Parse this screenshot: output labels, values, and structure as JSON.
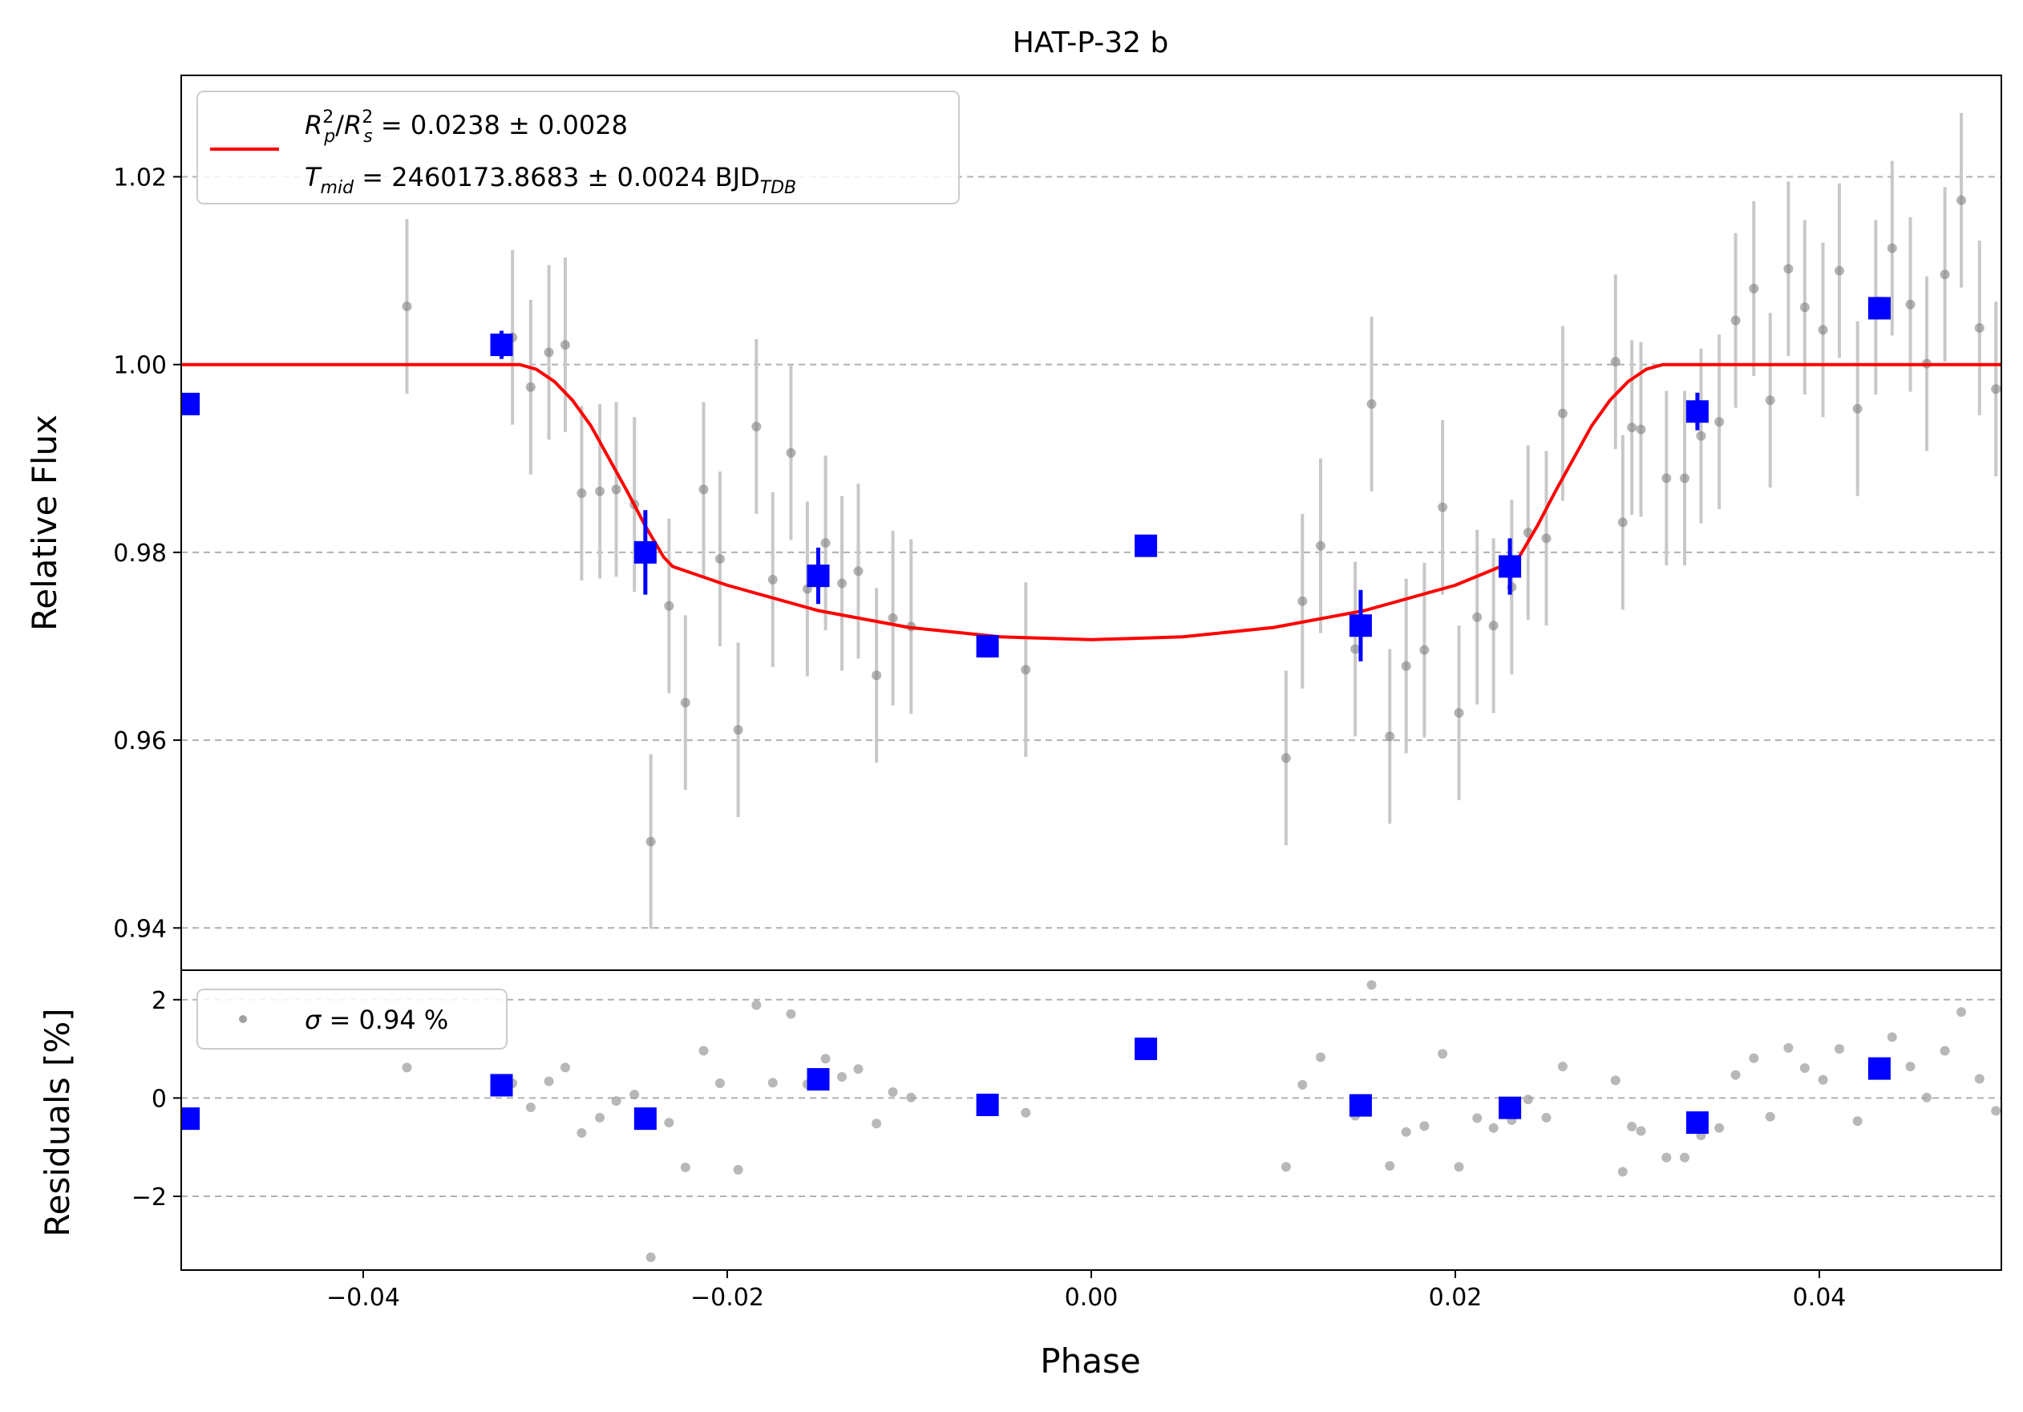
{
  "chart_data": [
    {
      "type": "scatter",
      "title": "HAT-P-32 b",
      "xlabel": "",
      "ylabel": "Relative Flux",
      "xlim": [
        -0.05,
        0.05
      ],
      "ylim": [
        0.9355,
        1.0308
      ],
      "xticks": [
        -0.04,
        -0.02,
        0.0,
        0.02,
        0.04
      ],
      "yticks": [
        0.94,
        0.96,
        0.98,
        1.0,
        1.02
      ],
      "ytick_labels": [
        "0.94",
        "0.96",
        "0.98",
        "1.00",
        "1.02"
      ],
      "grid": "horizontal dashed",
      "legend_position": "top-left",
      "legend": {
        "line1": {
          "lhs_sup": "2",
          "lhs_p": "p",
          "lhs_s": "s",
          "rhs": " = 0.0238 ± 0.0028"
        },
        "line2": {
          "lhs_sub": "mid",
          "rhs": " = 2460173.8683 ± 0.0024 BJD",
          "unit_sub": "TDB"
        }
      },
      "colors": {
        "data": "#808080",
        "errorbar": "#c8c8c8",
        "binned": "#0000ff",
        "model": "#ff0000",
        "grid": "#b0b0b0"
      },
      "series": [
        {
          "label": "data",
          "points": [
            [
              -0.0376,
              1.0062,
              0.0093
            ],
            [
              -0.0318,
              1.0029,
              0.0093
            ],
            [
              -0.0308,
              0.9976,
              0.0093
            ],
            [
              -0.0298,
              1.0013,
              0.0093
            ],
            [
              -0.0289,
              1.0021,
              0.0093
            ],
            [
              -0.028,
              0.9863,
              0.0093
            ],
            [
              -0.027,
              0.9865,
              0.0093
            ],
            [
              -0.0261,
              0.9867,
              0.0093
            ],
            [
              -0.0251,
              0.9851,
              0.0093
            ],
            [
              -0.0242,
              0.9492,
              0.0093
            ],
            [
              -0.0232,
              0.9743,
              0.0093
            ],
            [
              -0.0223,
              0.964,
              0.0093
            ],
            [
              -0.0213,
              0.9867,
              0.0093
            ],
            [
              -0.0204,
              0.9793,
              0.0093
            ],
            [
              -0.0194,
              0.9611,
              0.0093
            ],
            [
              -0.0184,
              0.9934,
              0.0093
            ],
            [
              -0.0175,
              0.9771,
              0.0093
            ],
            [
              -0.0165,
              0.9906,
              0.0093
            ],
            [
              -0.0156,
              0.9761,
              0.0093
            ],
            [
              -0.0146,
              0.981,
              0.0093
            ],
            [
              -0.0137,
              0.9767,
              0.0093
            ],
            [
              -0.0128,
              0.978,
              0.0093
            ],
            [
              -0.0118,
              0.9669,
              0.0093
            ],
            [
              -0.0109,
              0.973,
              0.0093
            ],
            [
              -0.0099,
              0.9721,
              0.0093
            ],
            [
              -0.0036,
              0.9675,
              0.0093
            ],
            [
              0.0107,
              0.9581,
              0.0093
            ],
            [
              0.0116,
              0.9748,
              0.0093
            ],
            [
              0.0126,
              0.9807,
              0.0093
            ],
            [
              0.0145,
              0.9697,
              0.0093
            ],
            [
              0.0154,
              0.9958,
              0.0093
            ],
            [
              0.0164,
              0.9604,
              0.0093
            ],
            [
              0.0173,
              0.9679,
              0.0093
            ],
            [
              0.0183,
              0.9696,
              0.0093
            ],
            [
              0.0193,
              0.9848,
              0.0093
            ],
            [
              0.0202,
              0.9629,
              0.0093
            ],
            [
              0.0212,
              0.9731,
              0.0093
            ],
            [
              0.0221,
              0.9722,
              0.0093
            ],
            [
              0.0231,
              0.9763,
              0.0093
            ],
            [
              0.024,
              0.9821,
              0.0093
            ],
            [
              0.025,
              0.9815,
              0.0093
            ],
            [
              0.0259,
              0.9948,
              0.0093
            ],
            [
              0.0288,
              1.0003,
              0.0093
            ],
            [
              0.0292,
              0.9832,
              0.0093
            ],
            [
              0.0297,
              0.9933,
              0.0093
            ],
            [
              0.0302,
              0.9931,
              0.0093
            ],
            [
              0.0316,
              0.9879,
              0.0093
            ],
            [
              0.0326,
              0.9879,
              0.0093
            ],
            [
              0.0335,
              0.9924,
              0.0093
            ],
            [
              0.0345,
              0.9939,
              0.0093
            ],
            [
              0.0354,
              1.0047,
              0.0093
            ],
            [
              0.0364,
              1.0081,
              0.0093
            ],
            [
              0.0373,
              0.9962,
              0.0093
            ],
            [
              0.0383,
              1.0102,
              0.0093
            ],
            [
              0.0392,
              1.0061,
              0.0093
            ],
            [
              0.0402,
              1.0037,
              0.0093
            ],
            [
              0.0411,
              1.01,
              0.0093
            ],
            [
              0.0421,
              0.9953,
              0.0093
            ],
            [
              0.0431,
              1.0061,
              0.0093
            ],
            [
              0.044,
              1.0124,
              0.0093
            ],
            [
              0.045,
              1.0064,
              0.0093
            ],
            [
              0.0459,
              1.0001,
              0.0093
            ],
            [
              0.0469,
              1.0096,
              0.0093
            ],
            [
              0.0478,
              1.0175,
              0.0093
            ],
            [
              0.0488,
              1.0039,
              0.0093
            ],
            [
              0.0497,
              0.9974,
              0.0093
            ]
          ]
        },
        {
          "label": "binned",
          "points": [
            [
              -0.0496,
              0.9958,
              0.001
            ],
            [
              -0.0324,
              1.0021,
              0.0015
            ],
            [
              -0.0245,
              0.98,
              0.0045
            ],
            [
              -0.015,
              0.9775,
              0.003
            ],
            [
              -0.0057,
              0.97,
              0.0012
            ],
            [
              0.003,
              0.9807,
              0.001
            ],
            [
              0.0148,
              0.9722,
              0.0038
            ],
            [
              0.023,
              0.9785,
              0.003
            ],
            [
              0.0333,
              0.995,
              0.002
            ],
            [
              0.0433,
              1.006,
              0.0012
            ]
          ]
        },
        {
          "label": "model",
          "x": [
            -0.05,
            -0.0314,
            -0.0305,
            -0.0295,
            -0.0285,
            -0.0275,
            -0.0265,
            -0.0255,
            -0.0245,
            -0.0235,
            -0.023,
            -0.02,
            -0.015,
            -0.01,
            -0.005,
            0.0,
            0.005,
            0.01,
            0.015,
            0.02,
            0.0225,
            0.0235,
            0.0245,
            0.0255,
            0.0265,
            0.0275,
            0.0285,
            0.0295,
            0.0305,
            0.0314,
            0.05
          ],
          "y": [
            1.0,
            1.0,
            0.9995,
            0.9982,
            0.9962,
            0.9935,
            0.99,
            0.9865,
            0.9828,
            0.9795,
            0.9785,
            0.9765,
            0.9738,
            0.972,
            0.971,
            0.9707,
            0.971,
            0.972,
            0.9738,
            0.9765,
            0.9785,
            0.9795,
            0.9828,
            0.9865,
            0.99,
            0.9935,
            0.9962,
            0.9982,
            0.9995,
            1.0,
            1.0
          ]
        }
      ]
    },
    {
      "type": "scatter",
      "title": "",
      "xlabel": "Phase",
      "ylabel": "Residuals [%]",
      "xlim": [
        -0.05,
        0.05
      ],
      "ylim": [
        -3.5,
        2.6
      ],
      "xticks": [
        -0.04,
        -0.02,
        0.0,
        0.02,
        0.04
      ],
      "xtick_labels": [
        "−0.04",
        "−0.02",
        "0.00",
        "0.02",
        "0.04"
      ],
      "yticks": [
        -2,
        0,
        2
      ],
      "ytick_labels": [
        "−2",
        "0",
        "2"
      ],
      "grid": "horizontal dashed",
      "legend_position": "top-left",
      "legend": {
        "sigma_symbol": "σ",
        "rhs": " = 0.94 %"
      },
      "colors": {
        "data": "#a0a0a0",
        "binned": "#0000ff",
        "grid": "#b0b0b0"
      },
      "series": [
        {
          "label": "data",
          "points": [
            [
              -0.0376,
              0.62
            ],
            [
              -0.0318,
              0.3
            ],
            [
              -0.0308,
              -0.19
            ],
            [
              -0.0298,
              0.34
            ],
            [
              -0.0289,
              0.62
            ],
            [
              -0.028,
              -0.71
            ],
            [
              -0.027,
              -0.4
            ],
            [
              -0.0261,
              -0.06
            ],
            [
              -0.0251,
              0.07
            ],
            [
              -0.0242,
              -3.24
            ],
            [
              -0.0232,
              -0.5
            ],
            [
              -0.0223,
              -1.41
            ],
            [
              -0.0213,
              0.96
            ],
            [
              -0.0204,
              0.3
            ],
            [
              -0.0194,
              -1.46
            ],
            [
              -0.0184,
              1.89
            ],
            [
              -0.0175,
              0.31
            ],
            [
              -0.0165,
              1.71
            ],
            [
              -0.0156,
              0.28
            ],
            [
              -0.0146,
              0.8
            ],
            [
              -0.0137,
              0.43
            ],
            [
              -0.0128,
              0.59
            ],
            [
              -0.0118,
              -0.52
            ],
            [
              -0.0109,
              0.12
            ],
            [
              -0.0099,
              0.01
            ],
            [
              -0.0036,
              -0.3
            ],
            [
              0.0107,
              -1.4
            ],
            [
              0.0116,
              0.27
            ],
            [
              0.0126,
              0.83
            ],
            [
              0.0145,
              -0.36
            ],
            [
              0.0154,
              2.3
            ],
            [
              0.0164,
              -1.38
            ],
            [
              0.0173,
              -0.69
            ],
            [
              0.0183,
              -0.57
            ],
            [
              0.0193,
              0.9
            ],
            [
              0.0202,
              -1.4
            ],
            [
              0.0212,
              -0.41
            ],
            [
              0.0221,
              -0.61
            ],
            [
              0.0231,
              -0.45
            ],
            [
              0.024,
              -0.03
            ],
            [
              0.025,
              -0.4
            ],
            [
              0.0259,
              0.64
            ],
            [
              0.0288,
              0.36
            ],
            [
              0.0292,
              -1.5
            ],
            [
              0.0297,
              -0.58
            ],
            [
              0.0302,
              -0.67
            ],
            [
              0.0316,
              -1.21
            ],
            [
              0.0326,
              -1.21
            ],
            [
              0.0335,
              -0.76
            ],
            [
              0.0345,
              -0.61
            ],
            [
              0.0354,
              0.47
            ],
            [
              0.0364,
              0.81
            ],
            [
              0.0373,
              -0.38
            ],
            [
              0.0383,
              1.02
            ],
            [
              0.0392,
              0.61
            ],
            [
              0.0402,
              0.37
            ],
            [
              0.0411,
              1.0
            ],
            [
              0.0421,
              -0.47
            ],
            [
              0.0431,
              0.61
            ],
            [
              0.044,
              1.24
            ],
            [
              0.045,
              0.64
            ],
            [
              0.0459,
              0.01
            ],
            [
              0.0469,
              0.96
            ],
            [
              0.0478,
              1.75
            ],
            [
              0.0488,
              0.39
            ],
            [
              0.0497,
              -0.26
            ]
          ]
        },
        {
          "label": "binned",
          "points": [
            [
              -0.0496,
              -0.42
            ],
            [
              -0.0324,
              0.26
            ],
            [
              -0.0245,
              -0.42
            ],
            [
              -0.015,
              0.38
            ],
            [
              -0.0057,
              -0.14
            ],
            [
              0.003,
              1.0
            ],
            [
              0.0148,
              -0.15
            ],
            [
              0.023,
              -0.2
            ],
            [
              0.0333,
              -0.5
            ],
            [
              0.0433,
              0.6
            ]
          ]
        }
      ]
    }
  ]
}
